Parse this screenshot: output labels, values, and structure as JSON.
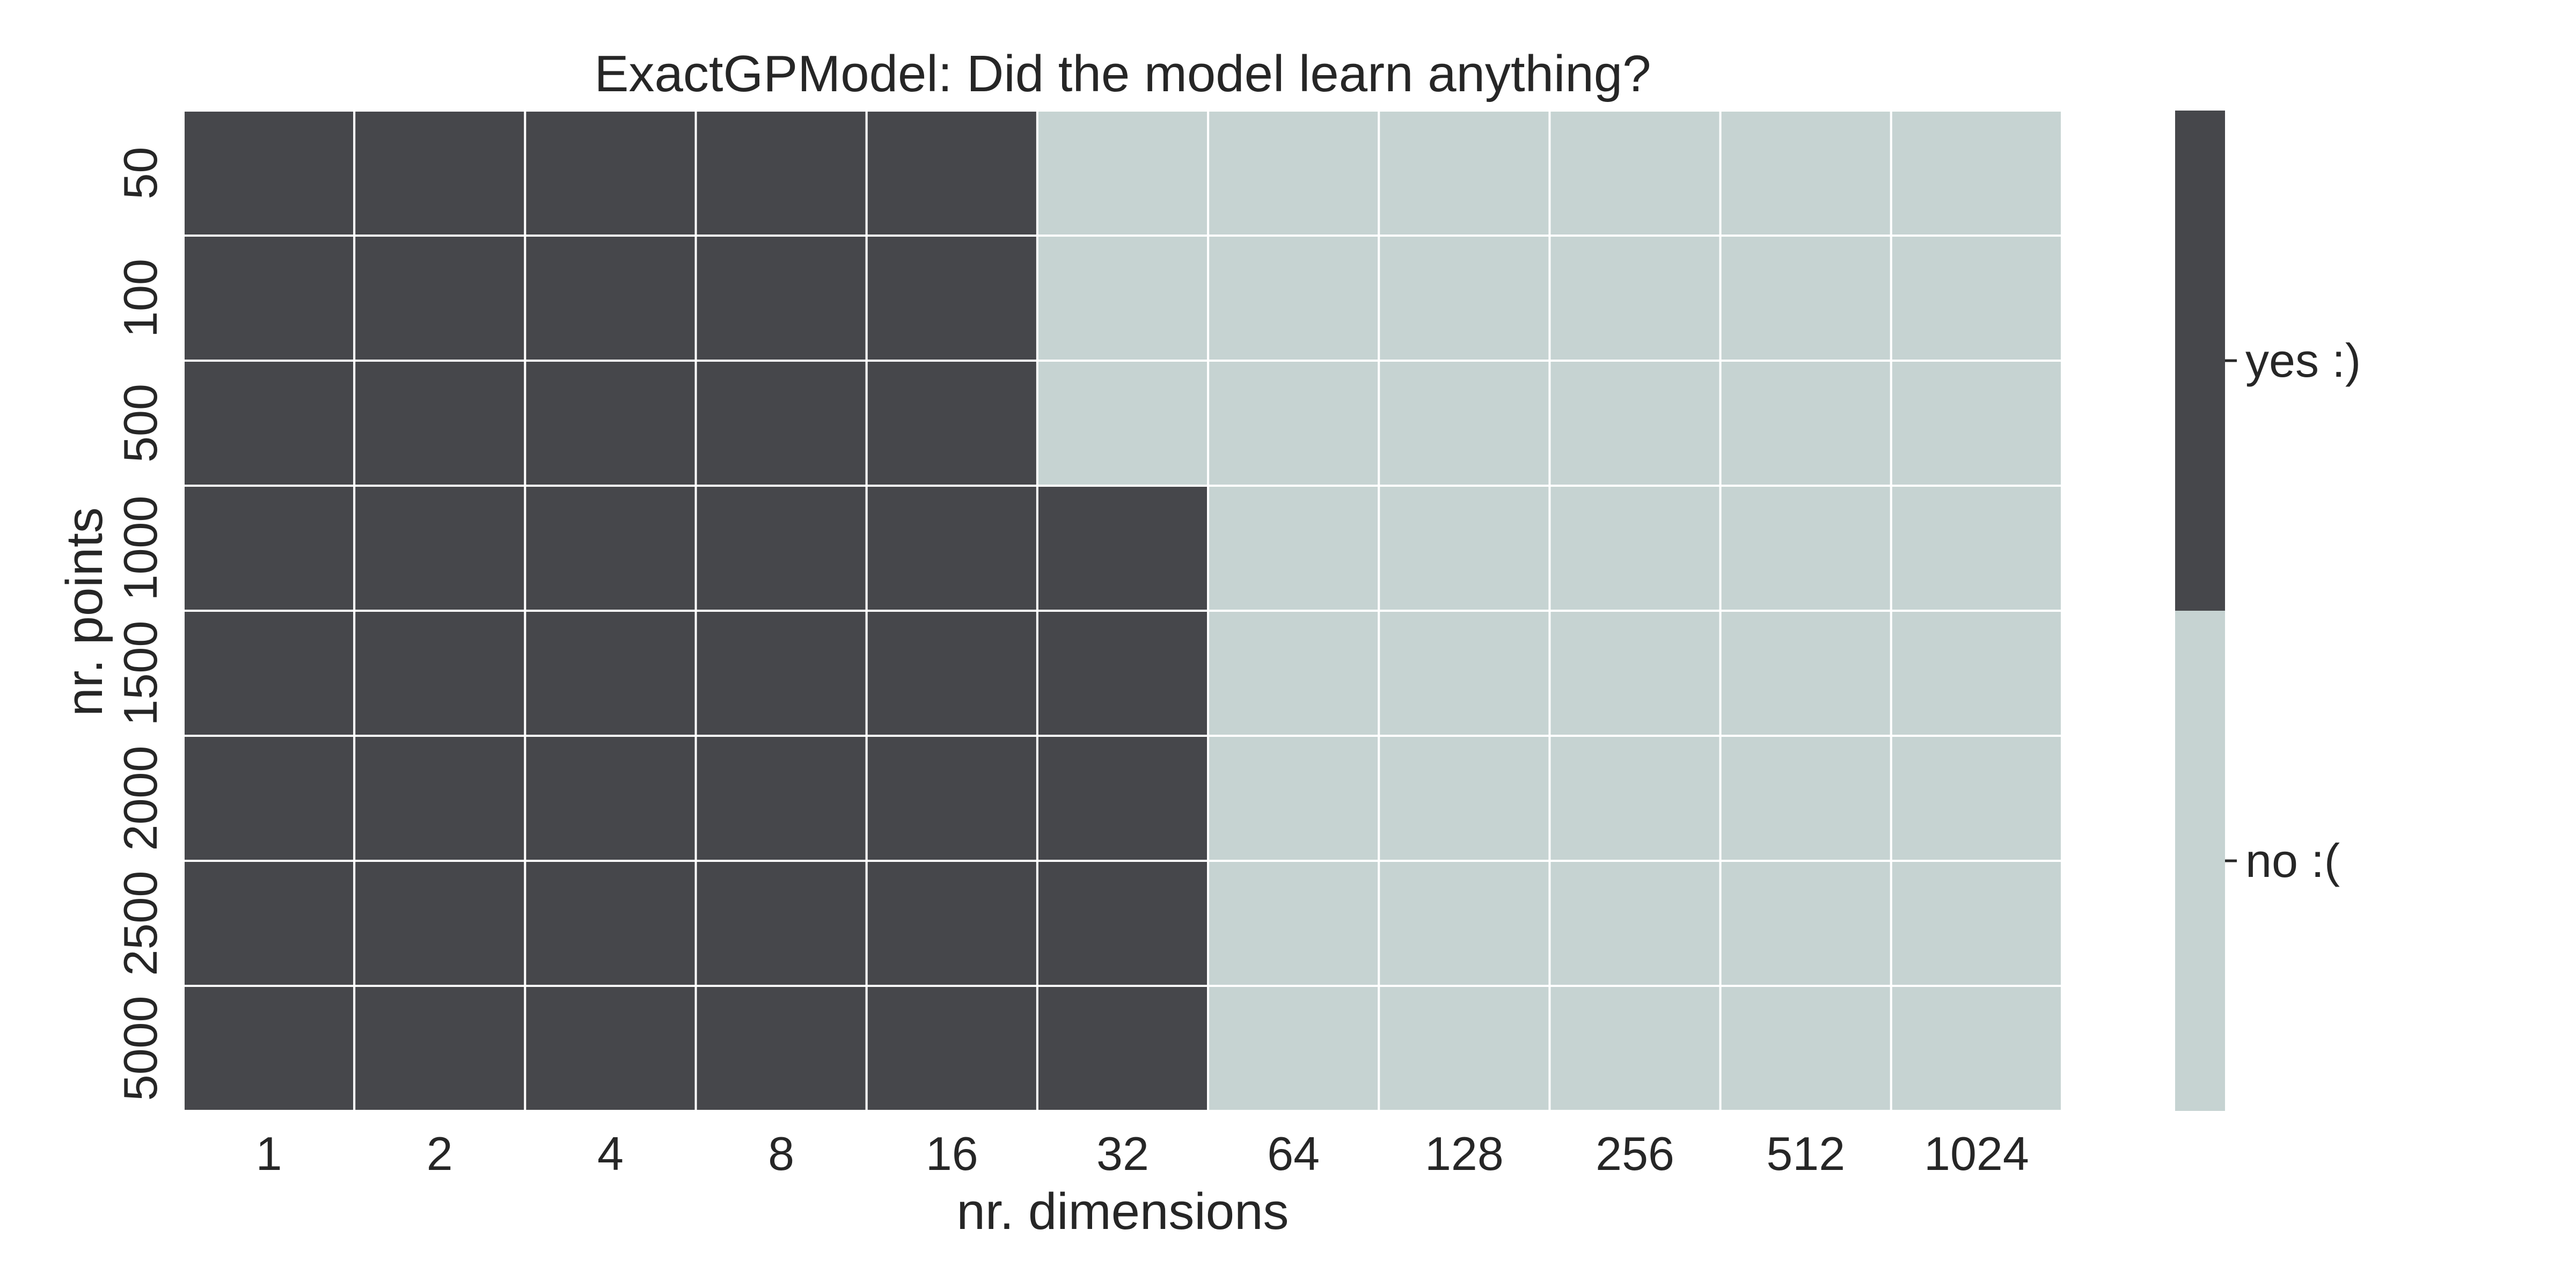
{
  "chart_data": {
    "type": "heatmap",
    "title": "ExactGPModel: Did the model learn anything?",
    "xlabel": "nr. dimensions",
    "ylabel": "nr. points",
    "x_categories": [
      "1",
      "2",
      "4",
      "8",
      "16",
      "32",
      "64",
      "128",
      "256",
      "512",
      "1024"
    ],
    "y_categories": [
      "50",
      "100",
      "500",
      "1000",
      "1500",
      "2000",
      "2500",
      "5000"
    ],
    "values": [
      [
        1,
        1,
        1,
        1,
        1,
        0,
        0,
        0,
        0,
        0,
        0
      ],
      [
        1,
        1,
        1,
        1,
        1,
        0,
        0,
        0,
        0,
        0,
        0
      ],
      [
        1,
        1,
        1,
        1,
        1,
        0,
        0,
        0,
        0,
        0,
        0
      ],
      [
        1,
        1,
        1,
        1,
        1,
        1,
        0,
        0,
        0,
        0,
        0
      ],
      [
        1,
        1,
        1,
        1,
        1,
        1,
        0,
        0,
        0,
        0,
        0
      ],
      [
        1,
        1,
        1,
        1,
        1,
        1,
        0,
        0,
        0,
        0,
        0
      ],
      [
        1,
        1,
        1,
        1,
        1,
        1,
        0,
        0,
        0,
        0,
        0
      ],
      [
        1,
        1,
        1,
        1,
        1,
        1,
        0,
        0,
        0,
        0,
        0
      ]
    ],
    "colorbar": {
      "labels": [
        "yes :)",
        "no :("
      ],
      "levels": [
        1,
        0
      ]
    },
    "colors": {
      "yes": "#46474b",
      "no": "#c6d3d2",
      "grid": "#ffffff"
    }
  }
}
